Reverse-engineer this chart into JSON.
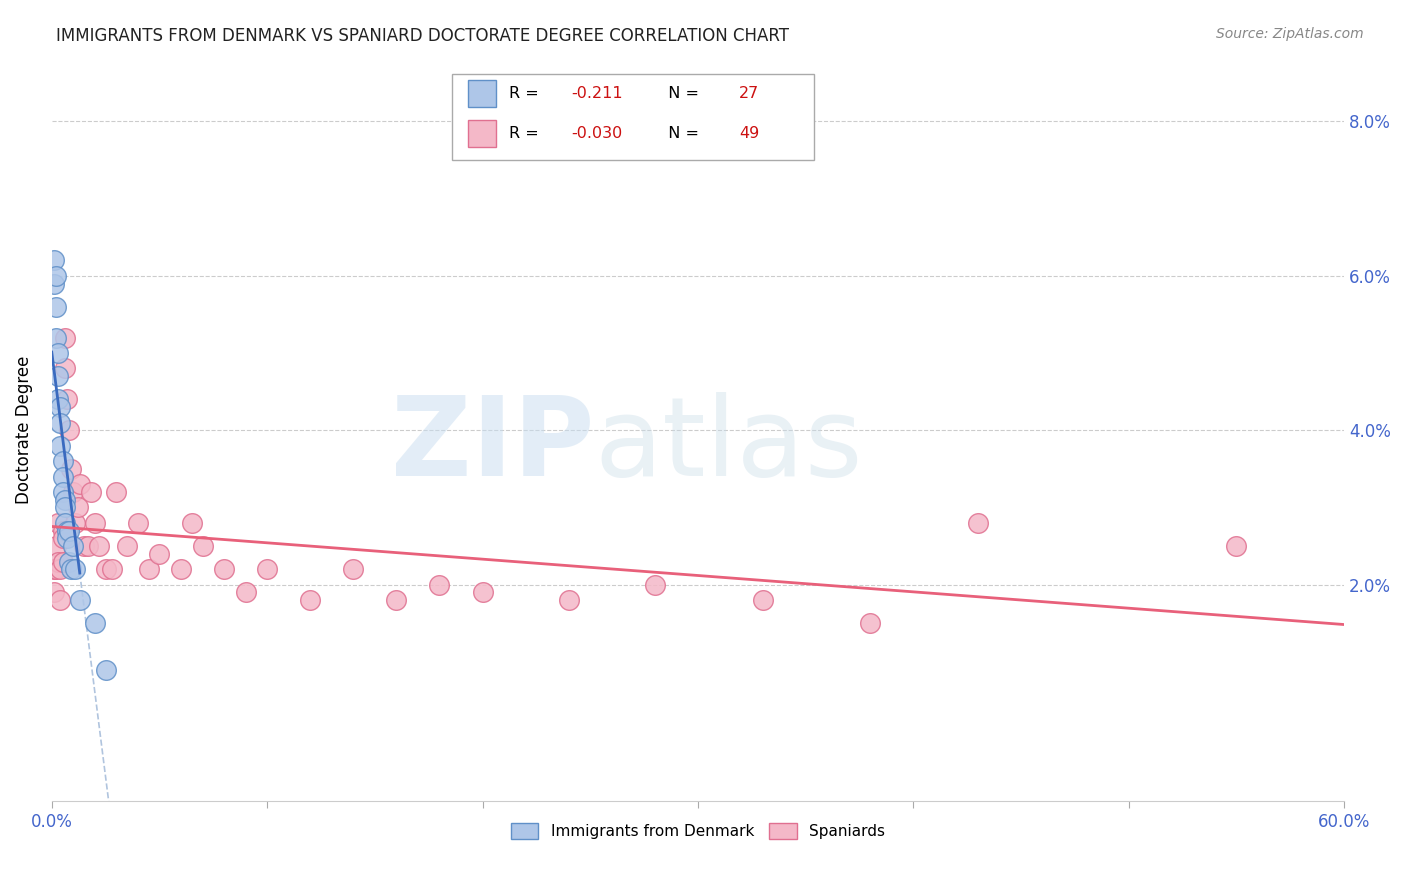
{
  "title": "IMMIGRANTS FROM DENMARK VS SPANIARD DOCTORATE DEGREE CORRELATION CHART",
  "source": "Source: ZipAtlas.com",
  "ylabel": "Doctorate Degree",
  "right_ytick_labels": [
    "2.0%",
    "4.0%",
    "6.0%",
    "8.0%"
  ],
  "right_ytick_vals": [
    0.02,
    0.04,
    0.06,
    0.08
  ],
  "blue_color": "#aec6e8",
  "pink_color": "#f4b8c8",
  "blue_edge": "#6090c8",
  "pink_edge": "#e07090",
  "blue_line_color": "#3a6abf",
  "pink_line_color": "#e8607a",
  "dashed_color": "#b0c4de",
  "watermark_zip": "ZIP",
  "watermark_atlas": "atlas",
  "blue_x": [
    0.001,
    0.001,
    0.002,
    0.002,
    0.002,
    0.003,
    0.003,
    0.003,
    0.004,
    0.004,
    0.004,
    0.005,
    0.005,
    0.005,
    0.006,
    0.006,
    0.006,
    0.007,
    0.007,
    0.008,
    0.008,
    0.009,
    0.01,
    0.011,
    0.013,
    0.02,
    0.025
  ],
  "blue_y": [
    0.062,
    0.059,
    0.06,
    0.056,
    0.052,
    0.05,
    0.047,
    0.044,
    0.043,
    0.041,
    0.038,
    0.036,
    0.034,
    0.032,
    0.031,
    0.03,
    0.028,
    0.027,
    0.026,
    0.027,
    0.023,
    0.022,
    0.025,
    0.022,
    0.018,
    0.015,
    0.009
  ],
  "pink_x": [
    0.001,
    0.001,
    0.002,
    0.002,
    0.003,
    0.003,
    0.004,
    0.004,
    0.005,
    0.005,
    0.005,
    0.006,
    0.006,
    0.007,
    0.008,
    0.009,
    0.01,
    0.011,
    0.012,
    0.013,
    0.015,
    0.017,
    0.018,
    0.02,
    0.022,
    0.025,
    0.028,
    0.03,
    0.035,
    0.04,
    0.045,
    0.05,
    0.06,
    0.065,
    0.07,
    0.08,
    0.09,
    0.1,
    0.12,
    0.14,
    0.16,
    0.18,
    0.2,
    0.24,
    0.28,
    0.33,
    0.38,
    0.43,
    0.55
  ],
  "pink_y": [
    0.022,
    0.019,
    0.025,
    0.022,
    0.028,
    0.023,
    0.022,
    0.018,
    0.027,
    0.026,
    0.023,
    0.052,
    0.048,
    0.044,
    0.04,
    0.035,
    0.032,
    0.028,
    0.03,
    0.033,
    0.025,
    0.025,
    0.032,
    0.028,
    0.025,
    0.022,
    0.022,
    0.032,
    0.025,
    0.028,
    0.022,
    0.024,
    0.022,
    0.028,
    0.025,
    0.022,
    0.019,
    0.022,
    0.018,
    0.022,
    0.018,
    0.02,
    0.019,
    0.018,
    0.02,
    0.018,
    0.015,
    0.028,
    0.025
  ],
  "xlim": [
    0.0,
    0.6
  ],
  "ylim": [
    -0.008,
    0.088
  ],
  "fig_width": 14.06,
  "fig_height": 8.92,
  "dpi": 100
}
